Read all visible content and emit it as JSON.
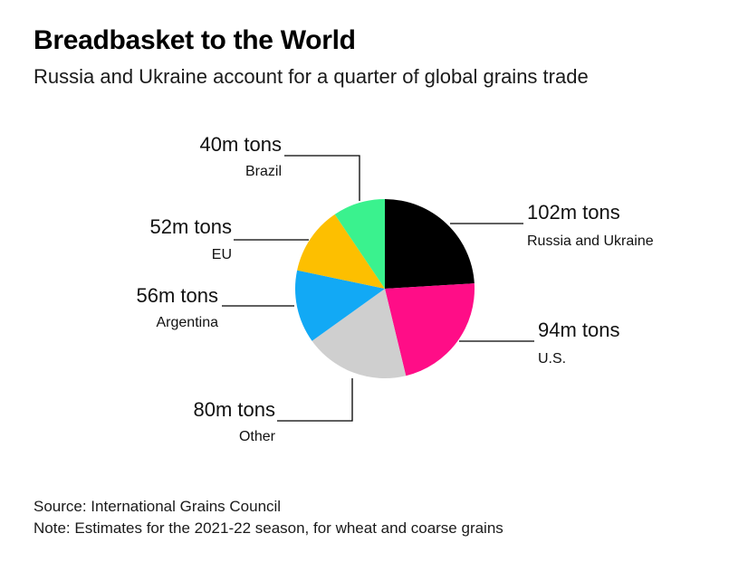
{
  "title": "Breadbasket to the World",
  "subtitle": "Russia and Ukraine account for a quarter of global grains trade",
  "source": "Source: International Grains Council",
  "note": "Note: Estimates for the 2021-22 season, for wheat and coarse grains",
  "chart_data": {
    "type": "pie",
    "unit": "m tons",
    "slices": [
      {
        "name": "Russia and Ukraine",
        "value": 102,
        "value_label": "102m tons",
        "color": "#000000"
      },
      {
        "name": "U.S.",
        "value": 94,
        "value_label": "94m tons",
        "color": "#ff0d87"
      },
      {
        "name": "Other",
        "value": 80,
        "value_label": "80m tons",
        "color": "#cfcfcf"
      },
      {
        "name": "Argentina",
        "value": 56,
        "value_label": "56m tons",
        "color": "#12a9f5"
      },
      {
        "name": "EU",
        "value": 52,
        "value_label": "52m tons",
        "color": "#fdbf00"
      },
      {
        "name": "Brazil",
        "value": 40,
        "value_label": "40m tons",
        "color": "#3af28e"
      }
    ]
  }
}
